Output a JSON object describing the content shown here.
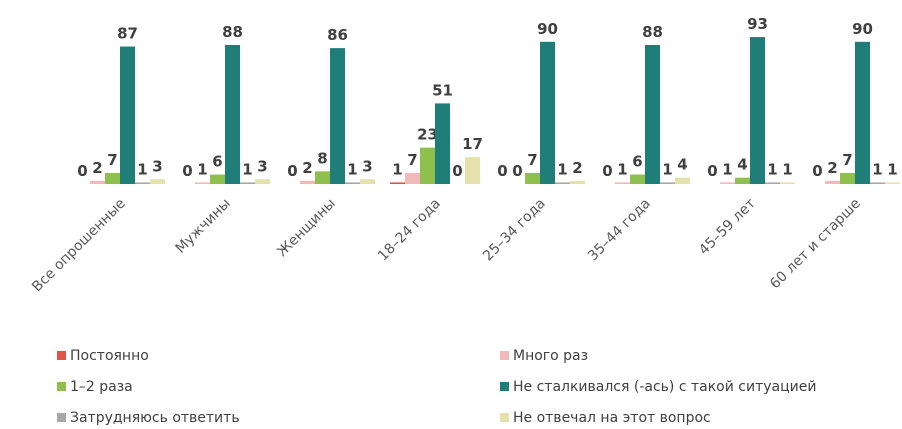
{
  "chart_data": {
    "type": "bar",
    "categories": [
      "Все опрошенные",
      "Мужчины",
      "Женщины",
      "18–24 года",
      "25–34 года",
      "35–44 года",
      "45–59 лет",
      "60 лет и старше"
    ],
    "series": [
      {
        "name": "Постоянно",
        "color": "#e0524a",
        "values": [
          0,
          0,
          0,
          1,
          0,
          0,
          0,
          0
        ]
      },
      {
        "name": "Много раз",
        "color": "#f2b9b9",
        "values": [
          2,
          1,
          2,
          7,
          0,
          1,
          1,
          2
        ]
      },
      {
        "name": "1–2 раза",
        "color": "#8fc04d",
        "values": [
          7,
          6,
          8,
          23,
          7,
          6,
          4,
          7
        ]
      },
      {
        "name": "Не сталкивался (-ась) с такой ситуацией",
        "color": "#1f7f78",
        "values": [
          87,
          88,
          86,
          51,
          90,
          88,
          93,
          90
        ]
      },
      {
        "name": "Затрудняюсь ответить",
        "color": "#a8a8a8",
        "values": [
          1,
          1,
          1,
          0,
          1,
          1,
          1,
          1
        ]
      },
      {
        "name": "Не отвечал на этот вопрос",
        "color": "#e4e1ab",
        "values": [
          3,
          3,
          3,
          17,
          2,
          4,
          1,
          1
        ]
      }
    ]
  }
}
